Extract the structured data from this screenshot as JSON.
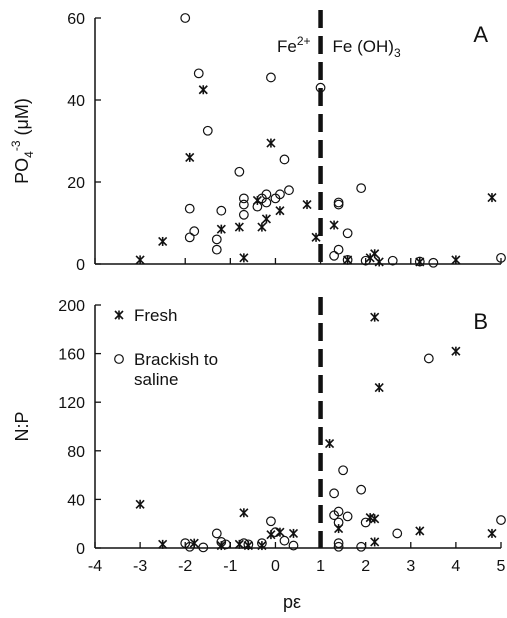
{
  "chart_data": [
    {
      "type": "scatter",
      "panel": "A",
      "ylabel": "PO4-3 (μM)",
      "ylabel_parts": {
        "base": "PO",
        "sub": "4",
        "sup": "-3",
        "rest": " (μM)"
      },
      "xlim": [
        -4,
        5
      ],
      "ylim": [
        0,
        60
      ],
      "yticks": [
        0,
        20,
        40,
        60
      ],
      "threshold_x": 1,
      "annotations": {
        "left": {
          "base": "Fe",
          "sup": "2+"
        },
        "right": {
          "base": "Fe (OH)",
          "sub": "3"
        }
      },
      "series": [
        {
          "name": "Fresh",
          "marker": "star",
          "points": [
            [
              -3.0,
              1
            ],
            [
              -2.5,
              5.5
            ],
            [
              -1.9,
              26
            ],
            [
              -1.6,
              42.5
            ],
            [
              -1.2,
              8.5
            ],
            [
              -0.8,
              9
            ],
            [
              -0.7,
              1.5
            ],
            [
              -0.4,
              15.5
            ],
            [
              -0.3,
              9
            ],
            [
              -0.1,
              29.5
            ],
            [
              -0.2,
              11
            ],
            [
              0.1,
              13
            ],
            [
              0.7,
              14.5
            ],
            [
              0.9,
              6.5
            ],
            [
              1.3,
              9.5
            ],
            [
              1.6,
              1
            ],
            [
              2.1,
              1.5
            ],
            [
              2.2,
              2.5
            ],
            [
              2.3,
              0.5
            ],
            [
              3.2,
              0.5
            ],
            [
              4.0,
              1
            ],
            [
              4.8,
              16.2
            ]
          ]
        },
        {
          "name": "Brackish to saline",
          "marker": "circle",
          "points": [
            [
              -2.0,
              60
            ],
            [
              -1.7,
              46.5
            ],
            [
              -1.5,
              32.5
            ],
            [
              -1.9,
              13.5
            ],
            [
              -1.9,
              6.5
            ],
            [
              -1.8,
              8
            ],
            [
              -1.3,
              3.5
            ],
            [
              -1.3,
              6
            ],
            [
              -1.2,
              13
            ],
            [
              -0.8,
              22.5
            ],
            [
              -0.7,
              16
            ],
            [
              -0.7,
              14.5
            ],
            [
              -0.7,
              12
            ],
            [
              -0.4,
              14
            ],
            [
              -0.3,
              16
            ],
            [
              -0.2,
              17
            ],
            [
              -0.2,
              15
            ],
            [
              -0.1,
              45.5
            ],
            [
              0.0,
              16
            ],
            [
              0.1,
              17
            ],
            [
              0.2,
              25.5
            ],
            [
              0.3,
              18
            ],
            [
              1.0,
              43
            ],
            [
              1.4,
              15
            ],
            [
              1.4,
              14.5
            ],
            [
              1.3,
              2
            ],
            [
              1.4,
              3.5
            ],
            [
              1.6,
              7.5
            ],
            [
              1.9,
              18.5
            ],
            [
              1.6,
              1
            ],
            [
              2.0,
              0.8
            ],
            [
              2.6,
              0.8
            ],
            [
              3.2,
              0.6
            ],
            [
              3.5,
              0.3
            ],
            [
              5.0,
              1.5
            ]
          ]
        }
      ]
    },
    {
      "type": "scatter",
      "panel": "B",
      "xlabel": "pε",
      "ylabel": "N:P",
      "xlim": [
        -4,
        5
      ],
      "ylim": [
        0,
        200
      ],
      "xticks": [
        -4,
        -3,
        -2,
        -1,
        0,
        1,
        2,
        3,
        4,
        5
      ],
      "yticks": [
        0,
        40,
        80,
        120,
        160,
        200
      ],
      "threshold_x": 1,
      "legend": {
        "placement": "top-left",
        "entries": [
          {
            "marker": "star",
            "label": "Fresh"
          },
          {
            "marker": "circle",
            "label_lines": [
              "Brackish to",
              "saline"
            ]
          }
        ]
      },
      "series": [
        {
          "name": "Fresh",
          "marker": "star",
          "points": [
            [
              -3.0,
              36
            ],
            [
              -2.5,
              3
            ],
            [
              -1.8,
              4
            ],
            [
              -1.2,
              2
            ],
            [
              -0.7,
              29
            ],
            [
              -0.8,
              3
            ],
            [
              -0.6,
              2
            ],
            [
              -0.3,
              2
            ],
            [
              -0.1,
              11
            ],
            [
              0.1,
              13
            ],
            [
              0.4,
              12
            ],
            [
              1.2,
              86
            ],
            [
              1.4,
              16
            ],
            [
              2.2,
              190
            ],
            [
              2.1,
              25
            ],
            [
              2.2,
              24
            ],
            [
              2.3,
              132
            ],
            [
              2.2,
              5
            ],
            [
              3.2,
              14
            ],
            [
              4.0,
              162
            ],
            [
              4.8,
              12
            ]
          ]
        },
        {
          "name": "Brackish to saline",
          "marker": "circle",
          "points": [
            [
              -2.0,
              4
            ],
            [
              -1.9,
              1
            ],
            [
              -1.6,
              0.5
            ],
            [
              -1.3,
              12
            ],
            [
              -1.2,
              5
            ],
            [
              -1.1,
              3
            ],
            [
              -0.7,
              4
            ],
            [
              -0.6,
              3
            ],
            [
              -0.3,
              4
            ],
            [
              -0.1,
              22
            ],
            [
              0.0,
              13
            ],
            [
              0.2,
              6
            ],
            [
              0.4,
              2
            ],
            [
              1.3,
              45
            ],
            [
              1.3,
              27
            ],
            [
              1.4,
              21
            ],
            [
              1.4,
              30
            ],
            [
              1.5,
              64
            ],
            [
              1.6,
              26
            ],
            [
              1.4,
              4
            ],
            [
              1.4,
              1
            ],
            [
              1.9,
              48
            ],
            [
              2.0,
              21
            ],
            [
              1.9,
              1
            ],
            [
              2.7,
              12
            ],
            [
              3.4,
              156
            ],
            [
              5.0,
              23
            ]
          ]
        }
      ]
    }
  ]
}
